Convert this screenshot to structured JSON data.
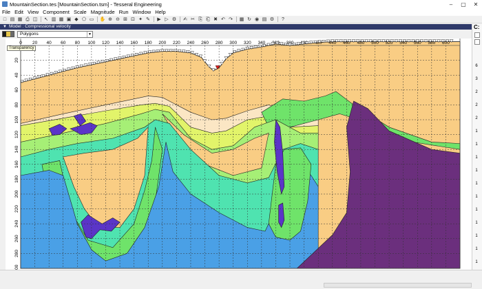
{
  "window": {
    "title": "MountainSection.tes [MountainSection.tsm] - Tesseral Engineering",
    "minimize": "–",
    "maximize": "▢",
    "close": "✕"
  },
  "menu": [
    "File",
    "Edit",
    "View",
    "Component",
    "Scale",
    "Magnitude",
    "Run",
    "Window",
    "Help"
  ],
  "toolbar": {
    "icons": [
      "new-icon",
      "open-icon",
      "save-icon",
      "print-icon",
      "preview-icon",
      "pointer-icon",
      "grid-icon",
      "table-icon",
      "layers-icon",
      "node-icon",
      "polygon-icon",
      "rect-icon",
      "pan-icon",
      "zoom-in-icon",
      "zoom-out-icon",
      "zoom-area-icon",
      "zoom-fit-icon",
      "star-icon",
      "edit-icon",
      "run-icon",
      "play-icon",
      "tool-icon",
      "brush-icon",
      "cut-icon",
      "copy-icon",
      "paste-icon",
      "delete-icon",
      "undo-icon",
      "redo-icon",
      "model-icon",
      "refresh-icon",
      "snap-icon",
      "calc-icon",
      "settings-icon",
      "help-icon"
    ],
    "glyphs": [
      "□",
      "▤",
      "▦",
      "⎙",
      "◫",
      "↖",
      "▥",
      "▦",
      "▣",
      "◆",
      "⬠",
      "▭",
      "✋",
      "⊕",
      "⊖",
      "⊞",
      "⊡",
      "✦",
      "✎",
      "▶",
      "▷",
      "⚙",
      "✍",
      "✂",
      "⎘",
      "⎗",
      "✖",
      "↶",
      "↷",
      "▦",
      "↻",
      "◉",
      "▤",
      "⚙",
      "?"
    ]
  },
  "document": {
    "header": "Model : Compressional velocity",
    "layer_select": "Polygons",
    "tooltip": "Transparency",
    "swatch_colors": [
      "#1b1b1b",
      "#e6c64a",
      "#6a6a6a"
    ]
  },
  "right_panel": {
    "label": "C:"
  },
  "colors": {
    "sky": "#ffffff",
    "sandstone": "#f9cd84",
    "cream": "#fbe6c4",
    "yellow_green": "#e2f46a",
    "bright_green": "#6fe36a",
    "lime": "#a6ef76",
    "teal": "#4fe3b0",
    "blue": "#4aa0e6",
    "purple": "#6b2f7d",
    "violet": "#5b35c8"
  },
  "chart_data": {
    "type": "table",
    "x_ticks": [
      20,
      40,
      60,
      80,
      100,
      120,
      140,
      160,
      180,
      200,
      220,
      240,
      260,
      280,
      300,
      320,
      340,
      360,
      380,
      400,
      420,
      440,
      460,
      480,
      500,
      520,
      540,
      560,
      580,
      600
    ],
    "y_ticks": [
      20,
      40,
      60,
      80,
      100,
      120,
      140,
      160,
      180,
      200,
      220,
      240,
      260,
      280,
      300
    ],
    "x_first_label": "0",
    "xlim": [
      0,
      620
    ],
    "ylim": [
      0,
      300
    ],
    "grid": true,
    "right_ruler": [
      "6",
      "3",
      "2",
      "2",
      "2",
      "1",
      "1",
      "1",
      "1",
      "1",
      "1",
      "1",
      "1",
      "1",
      "1",
      "1"
    ]
  }
}
